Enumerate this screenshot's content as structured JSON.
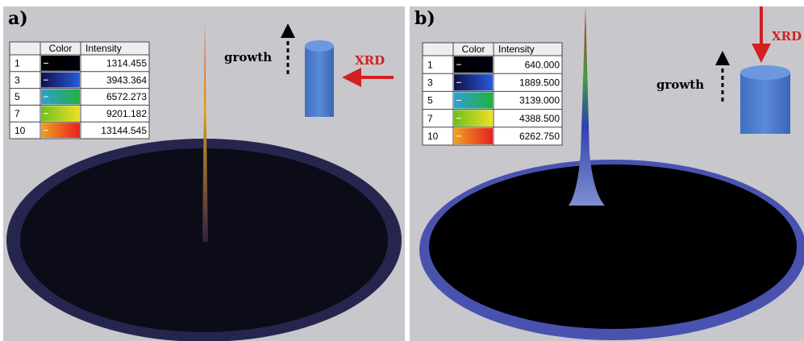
{
  "panels": [
    {
      "label": "a)",
      "table": {
        "header": [
          "Color",
          "Intensity"
        ],
        "rows": [
          [
            "1",
            "1314.455"
          ],
          [
            "3",
            "3943.364"
          ],
          [
            "5",
            "6572.273"
          ],
          [
            "7",
            "9201.182"
          ],
          [
            "10",
            "13144.545"
          ]
        ]
      },
      "growth": "growth",
      "xrd": "XRD"
    },
    {
      "label": "b)",
      "table": {
        "header": [
          "Color",
          "Intensity"
        ],
        "rows": [
          [
            "1",
            "640.000"
          ],
          [
            "3",
            "1889.500"
          ],
          [
            "5",
            "3139.000"
          ],
          [
            "7",
            "4388.500"
          ],
          [
            "10",
            "6262.750"
          ]
        ]
      },
      "growth": "growth",
      "xrd": "XRD"
    }
  ]
}
